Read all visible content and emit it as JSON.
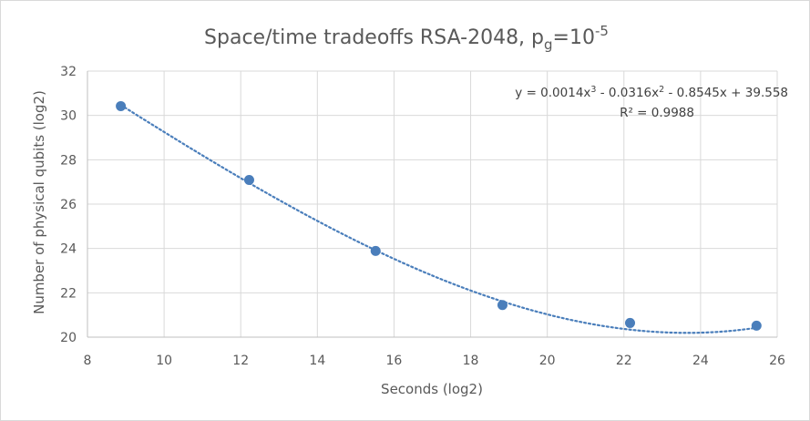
{
  "chart_data": {
    "type": "scatter",
    "title": {
      "main": "Space/time tradeoffs RSA-2048, p",
      "sub": "g",
      "tail": "=10",
      "sup": "-5"
    },
    "xlabel": "Seconds (log2)",
    "ylabel": "Number of physical qubits (log2)",
    "xlim": [
      8,
      26
    ],
    "ylim": [
      20,
      32
    ],
    "xticks": [
      8,
      10,
      12,
      14,
      16,
      18,
      20,
      22,
      24,
      26
    ],
    "yticks": [
      20,
      22,
      24,
      26,
      28,
      30,
      32
    ],
    "grid": true,
    "series": [
      {
        "x": [
          8.87,
          12.22,
          15.52,
          18.83,
          22.16,
          25.46
        ],
        "y": [
          30.42,
          27.09,
          23.89,
          21.45,
          20.64,
          20.52
        ],
        "color": "#4a7ebb"
      }
    ],
    "trendline": {
      "type": "polynomial",
      "order": 3,
      "coefficients": [
        0.0014,
        -0.0316,
        -0.8545,
        39.558
      ],
      "color": "#4a7ebb",
      "style": "dotted"
    },
    "equation": {
      "prefix": "y = 0.0014x",
      "sup1": "3",
      "mid1": " - 0.0316x",
      "sup2": "2",
      "rest": " - 0.8545x + 39.558",
      "r2": "R² = 0.9988"
    }
  }
}
